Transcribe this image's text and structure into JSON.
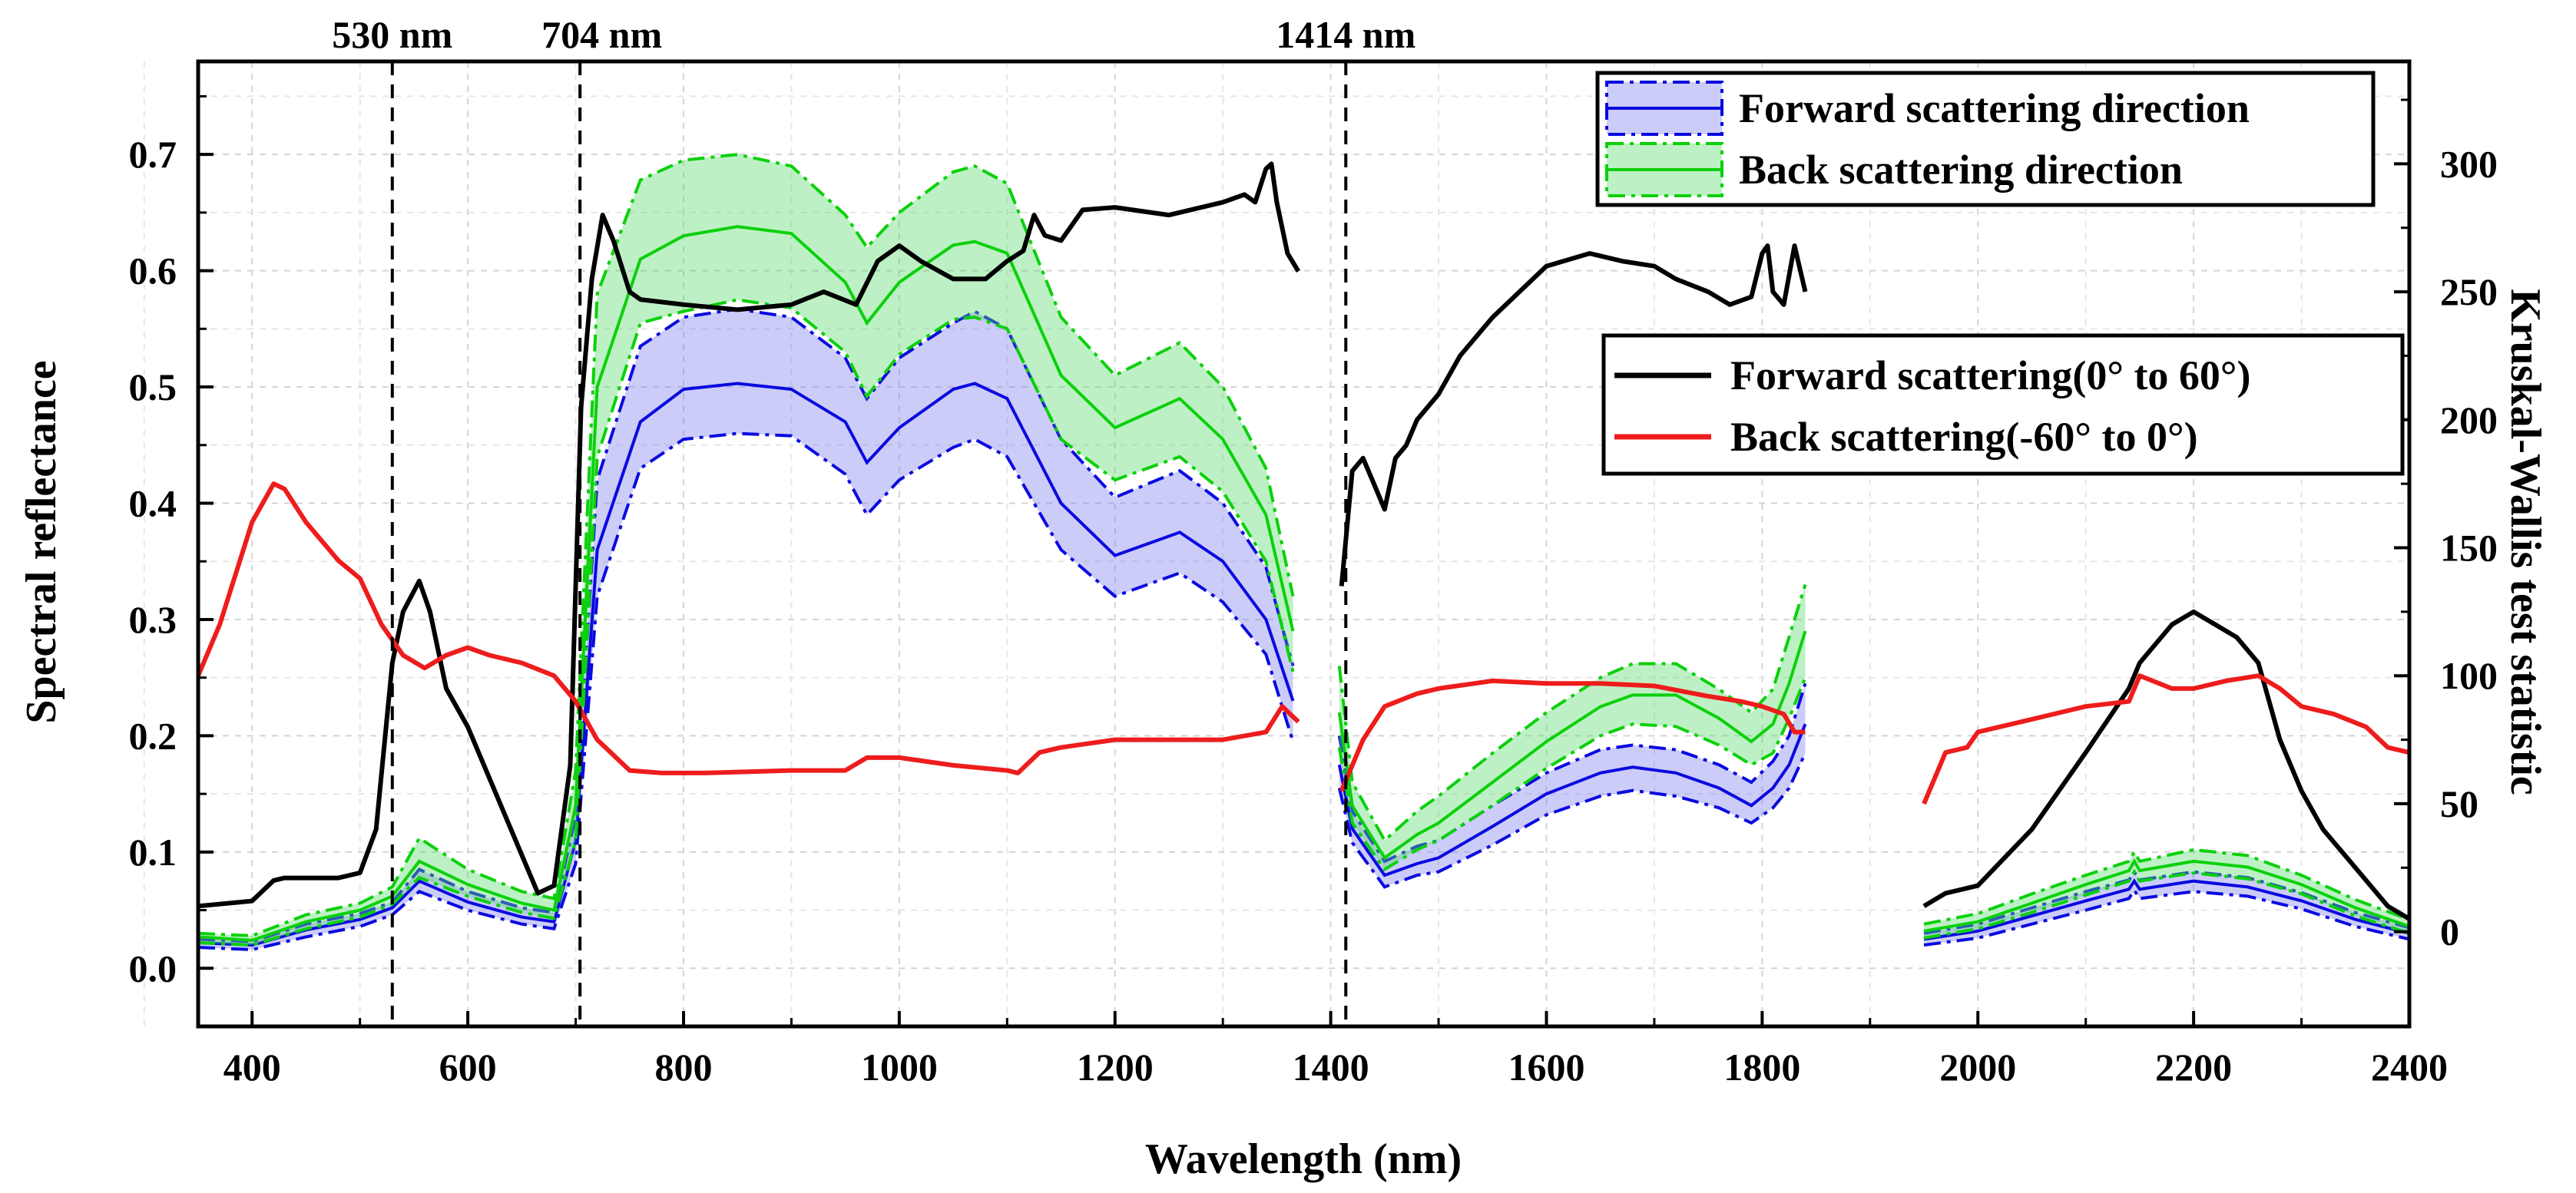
{
  "chart_data": {
    "type": "line",
    "title": "",
    "xlabel": "Wavelength (nm)",
    "ylabel": "Spectral reflectance",
    "y2label": "Kruskal-Wallis test statistic",
    "xlim": [
      350,
      2400
    ],
    "ylim": [
      -0.05,
      0.78
    ],
    "y2lim": [
      -37,
      340
    ],
    "x_ticks": [
      400,
      600,
      800,
      1000,
      1200,
      1400,
      1600,
      1800,
      2000,
      2200,
      2400
    ],
    "y_ticks": [
      0.0,
      0.1,
      0.2,
      0.3,
      0.4,
      0.5,
      0.6,
      0.7
    ],
    "y_tick_labels": [
      "0.0",
      "0.1",
      "0.2",
      "0.3",
      "0.4",
      "0.5",
      "0.6",
      "0.7"
    ],
    "y2_ticks": [
      0,
      50,
      100,
      150,
      200,
      250,
      300
    ],
    "grid": true,
    "vlines": [
      {
        "x": 530,
        "label": "530 nm"
      },
      {
        "x": 704,
        "label": "704 nm"
      },
      {
        "x": 1414,
        "label": "1414 nm"
      }
    ],
    "bands": [
      {
        "name": "Forward scattering direction",
        "color": "#0a0ae0",
        "fill": "rgba(120,120,240,0.38)",
        "x": [
          350,
          400,
          450,
          500,
          530,
          555,
          600,
          650,
          680,
          700,
          720,
          760,
          800,
          850,
          900,
          950,
          970,
          1000,
          1050,
          1070,
          1100,
          1150,
          1200,
          1260,
          1300,
          1340,
          1365
        ],
        "mean": [
          0.022,
          0.02,
          0.033,
          0.042,
          0.052,
          0.075,
          0.057,
          0.044,
          0.04,
          0.11,
          0.36,
          0.47,
          0.498,
          0.503,
          0.498,
          0.47,
          0.435,
          0.465,
          0.498,
          0.503,
          0.49,
          0.4,
          0.355,
          0.375,
          0.35,
          0.3,
          0.23
        ],
        "upper": [
          0.025,
          0.023,
          0.038,
          0.047,
          0.057,
          0.085,
          0.066,
          0.052,
          0.048,
          0.13,
          0.42,
          0.535,
          0.56,
          0.567,
          0.56,
          0.525,
          0.49,
          0.525,
          0.555,
          0.565,
          0.55,
          0.455,
          0.405,
          0.428,
          0.4,
          0.345,
          0.26
        ],
        "lower": [
          0.018,
          0.016,
          0.027,
          0.036,
          0.046,
          0.066,
          0.05,
          0.038,
          0.034,
          0.09,
          0.32,
          0.43,
          0.455,
          0.46,
          0.458,
          0.425,
          0.39,
          0.42,
          0.448,
          0.455,
          0.44,
          0.36,
          0.32,
          0.34,
          0.315,
          0.27,
          0.195
        ]
      },
      {
        "name": "Back scattering direction",
        "color": "#0cd00c",
        "fill": "rgba(90,220,110,0.40)",
        "x": [
          350,
          400,
          450,
          500,
          530,
          555,
          600,
          650,
          680,
          700,
          720,
          760,
          800,
          850,
          900,
          950,
          970,
          1000,
          1050,
          1070,
          1100,
          1150,
          1200,
          1260,
          1300,
          1340,
          1365
        ],
        "mean": [
          0.027,
          0.024,
          0.04,
          0.05,
          0.062,
          0.092,
          0.072,
          0.056,
          0.05,
          0.14,
          0.5,
          0.61,
          0.63,
          0.638,
          0.632,
          0.59,
          0.555,
          0.59,
          0.622,
          0.625,
          0.615,
          0.51,
          0.465,
          0.49,
          0.455,
          0.39,
          0.29
        ],
        "upper": [
          0.03,
          0.028,
          0.046,
          0.056,
          0.07,
          0.112,
          0.085,
          0.066,
          0.06,
          0.17,
          0.58,
          0.678,
          0.695,
          0.7,
          0.69,
          0.648,
          0.62,
          0.65,
          0.685,
          0.69,
          0.675,
          0.56,
          0.51,
          0.538,
          0.5,
          0.43,
          0.32
        ],
        "lower": [
          0.022,
          0.02,
          0.034,
          0.044,
          0.055,
          0.078,
          0.062,
          0.048,
          0.043,
          0.11,
          0.44,
          0.555,
          0.565,
          0.575,
          0.568,
          0.53,
          0.492,
          0.528,
          0.558,
          0.56,
          0.55,
          0.455,
          0.42,
          0.44,
          0.41,
          0.35,
          0.255
        ]
      },
      {
        "name": "Forward scattering direction",
        "color": "#0a0ae0",
        "fill": "rgba(120,120,240,0.38)",
        "x": [
          1408,
          1420,
          1450,
          1480,
          1500,
          1550,
          1600,
          1650,
          1680,
          1720,
          1760,
          1790,
          1810,
          1825,
          1840
        ],
        "mean": [
          0.175,
          0.12,
          0.08,
          0.09,
          0.095,
          0.122,
          0.15,
          0.168,
          0.173,
          0.168,
          0.155,
          0.14,
          0.155,
          0.175,
          0.21
        ],
        "upper": [
          0.2,
          0.135,
          0.092,
          0.105,
          0.11,
          0.14,
          0.168,
          0.188,
          0.192,
          0.188,
          0.175,
          0.16,
          0.178,
          0.2,
          0.245
        ],
        "lower": [
          0.155,
          0.108,
          0.07,
          0.08,
          0.083,
          0.106,
          0.132,
          0.148,
          0.153,
          0.148,
          0.138,
          0.125,
          0.138,
          0.155,
          0.185
        ]
      },
      {
        "name": "Back scattering direction",
        "color": "#0cd00c",
        "fill": "rgba(90,220,110,0.40)",
        "x": [
          1408,
          1420,
          1450,
          1480,
          1500,
          1550,
          1600,
          1650,
          1680,
          1720,
          1760,
          1790,
          1810,
          1825,
          1840
        ],
        "mean": [
          0.22,
          0.14,
          0.095,
          0.115,
          0.125,
          0.16,
          0.195,
          0.225,
          0.235,
          0.235,
          0.215,
          0.195,
          0.21,
          0.245,
          0.29
        ],
        "upper": [
          0.26,
          0.16,
          0.11,
          0.135,
          0.148,
          0.185,
          0.22,
          0.25,
          0.262,
          0.262,
          0.24,
          0.22,
          0.24,
          0.285,
          0.33
        ],
        "lower": [
          0.19,
          0.125,
          0.085,
          0.102,
          0.11,
          0.14,
          0.172,
          0.2,
          0.21,
          0.208,
          0.192,
          0.175,
          0.185,
          0.215,
          0.25
        ]
      },
      {
        "name": "Forward scattering direction",
        "color": "#0a0ae0",
        "fill": "rgba(120,120,240,0.38)",
        "x": [
          1950,
          2000,
          2050,
          2100,
          2140,
          2145,
          2150,
          2200,
          2250,
          2300,
          2350,
          2400
        ],
        "mean": [
          0.025,
          0.032,
          0.045,
          0.058,
          0.068,
          0.075,
          0.068,
          0.075,
          0.07,
          0.058,
          0.042,
          0.03
        ],
        "upper": [
          0.03,
          0.038,
          0.052,
          0.066,
          0.076,
          0.083,
          0.076,
          0.083,
          0.078,
          0.065,
          0.048,
          0.035
        ],
        "lower": [
          0.02,
          0.026,
          0.038,
          0.05,
          0.06,
          0.067,
          0.06,
          0.066,
          0.062,
          0.051,
          0.036,
          0.025
        ]
      },
      {
        "name": "Back scattering direction",
        "color": "#0cd00c",
        "fill": "rgba(90,220,110,0.40)",
        "x": [
          1950,
          2000,
          2050,
          2100,
          2140,
          2145,
          2150,
          2200,
          2250,
          2300,
          2350,
          2400
        ],
        "mean": [
          0.032,
          0.04,
          0.056,
          0.072,
          0.084,
          0.092,
          0.084,
          0.092,
          0.087,
          0.072,
          0.052,
          0.036
        ],
        "upper": [
          0.038,
          0.047,
          0.064,
          0.08,
          0.092,
          0.1,
          0.092,
          0.102,
          0.097,
          0.08,
          0.059,
          0.042
        ],
        "lower": [
          0.026,
          0.034,
          0.048,
          0.063,
          0.075,
          0.083,
          0.075,
          0.082,
          0.077,
          0.064,
          0.045,
          0.03
        ]
      }
    ],
    "series": [
      {
        "name": "Forward scattering(0° to 60°)",
        "axis": "y2",
        "color": "#000000",
        "segments": [
          {
            "x": [
              350,
              400,
              420,
              430,
              450,
              480,
              500,
              515,
              530,
              540,
              555,
              565,
              580,
              600,
              640,
              665,
              680,
              695,
              705,
              715,
              725,
              735,
              750,
              760,
              800,
              850,
              900,
              930,
              960,
              980,
              1000,
              1020,
              1050,
              1080,
              1100,
              1115,
              1125,
              1135,
              1150,
              1170,
              1200,
              1250,
              1300,
              1320,
              1330,
              1340,
              1345,
              1350,
              1360,
              1370
            ],
            "y": [
              10,
              12,
              20,
              21,
              21,
              21,
              23,
              40,
              105,
              125,
              137,
              125,
              95,
              80,
              40,
              15,
              18,
              65,
              205,
              255,
              280,
              270,
              250,
              247,
              245,
              243,
              245,
              250,
              245,
              262,
              268,
              262,
              255,
              255,
              262,
              266,
              280,
              272,
              270,
              282,
              283,
              280,
              285,
              288,
              285,
              298,
              300,
              285,
              265,
              258
            ]
          },
          {
            "x": [
              1410,
              1420,
              1430,
              1440,
              1450,
              1460,
              1470,
              1480,
              1500,
              1520,
              1550,
              1600,
              1640,
              1670,
              1700,
              1720,
              1750,
              1770,
              1790,
              1800,
              1805,
              1810,
              1820,
              1830,
              1840
            ],
            "y": [
              135,
              180,
              185,
              175,
              165,
              185,
              190,
              200,
              210,
              225,
              240,
              260,
              265,
              262,
              260,
              255,
              250,
              245,
              248,
              265,
              268,
              250,
              245,
              268,
              250
            ]
          },
          {
            "x": [
              1950,
              1970,
              2000,
              2050,
              2100,
              2140,
              2150,
              2180,
              2200,
              2220,
              2240,
              2260,
              2280,
              2300,
              2320,
              2340,
              2360,
              2380,
              2400
            ],
            "y": [
              10,
              15,
              18,
              40,
              70,
              95,
              105,
              120,
              125,
              120,
              115,
              105,
              75,
              55,
              40,
              30,
              20,
              10,
              5
            ]
          }
        ]
      },
      {
        "name": "Back scattering(-60° to 0°)",
        "axis": "y2",
        "color": "#ee1c1c",
        "segments": [
          {
            "x": [
              350,
              370,
              400,
              420,
              430,
              450,
              480,
              500,
              520,
              540,
              560,
              580,
              600,
              620,
              650,
              680,
              700,
              720,
              750,
              780,
              820,
              900,
              950,
              970,
              1000,
              1050,
              1100,
              1110,
              1130,
              1150,
              1200,
              1300,
              1340,
              1355,
              1370
            ],
            "y": [
              100,
              120,
              160,
              175,
              173,
              160,
              145,
              138,
              120,
              108,
              103,
              108,
              111,
              108,
              105,
              100,
              90,
              75,
              63,
              62,
              62,
              63,
              63,
              68,
              68,
              65,
              63,
              62,
              70,
              72,
              75,
              75,
              78,
              88,
              82
            ]
          },
          {
            "x": [
              1410,
              1430,
              1450,
              1480,
              1500,
              1550,
              1600,
              1650,
              1700,
              1750,
              1780,
              1800,
              1820,
              1830,
              1840
            ],
            "y": [
              55,
              75,
              88,
              93,
              95,
              98,
              97,
              97,
              96,
              92,
              90,
              88,
              85,
              78,
              78
            ]
          },
          {
            "x": [
              1950,
              1970,
              1990,
              2000,
              2050,
              2100,
              2140,
              2150,
              2180,
              2200,
              2230,
              2260,
              2280,
              2300,
              2330,
              2360,
              2380,
              2400
            ],
            "y": [
              50,
              70,
              72,
              78,
              83,
              88,
              90,
              100,
              95,
              95,
              98,
              100,
              95,
              88,
              85,
              80,
              72,
              70
            ]
          }
        ]
      }
    ],
    "legends": [
      {
        "entries": [
          "Forward scattering direction",
          "Back scattering direction"
        ],
        "location": "top-right"
      },
      {
        "entries": [
          "Forward scattering(0° to 60°)",
          "Back scattering(-60° to 0°)"
        ],
        "location": "upper-right"
      }
    ]
  }
}
